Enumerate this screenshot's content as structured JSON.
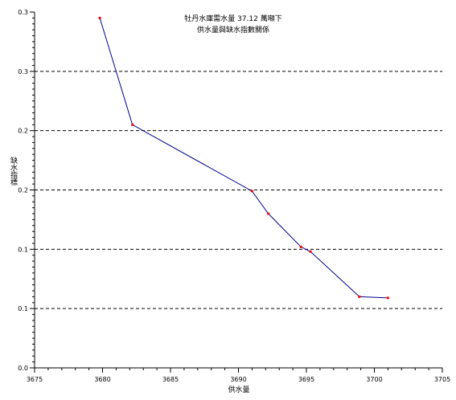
{
  "chart_data": {
    "type": "line",
    "title_line1": "牡丹水庫需水量 37.12 萬噸下",
    "title_line2": "供水量與缺水指數關係",
    "xlabel": "供水量",
    "ylabel": "缺水指標",
    "xlim": [
      3675,
      3705
    ],
    "ylim": [
      0,
      0.3
    ],
    "x_ticks": [
      {
        "value": 3675,
        "label": "3675"
      },
      {
        "value": 3680,
        "label": "3680"
      },
      {
        "value": 3685,
        "label": "3685"
      },
      {
        "value": 3690,
        "label": "3690"
      },
      {
        "value": 3695,
        "label": "3695"
      },
      {
        "value": 3700,
        "label": "3700"
      },
      {
        "value": 3705,
        "label": "3705"
      }
    ],
    "y_ticks": [
      {
        "value": 0,
        "label": "0.0"
      },
      {
        "value": 0.05,
        "label": "0.1"
      },
      {
        "value": 0.1,
        "label": "0.1"
      },
      {
        "value": 0.15,
        "label": "0.2"
      },
      {
        "value": 0.2,
        "label": "0.2"
      },
      {
        "value": 0.25,
        "label": "0.3"
      },
      {
        "value": 0.3,
        "label": "0.3"
      }
    ],
    "grid": "horizontal dashed",
    "line_color": "#00008b",
    "marker_color": "#ff0000",
    "series": [
      {
        "x": [
          3679.8,
          3682.2,
          3691.0,
          3692.2,
          3694.6,
          3695.3,
          3698.9,
          3701.0
        ],
        "y": [
          0.295,
          0.205,
          0.149,
          0.13,
          0.102,
          0.098,
          0.06,
          0.059
        ]
      }
    ]
  }
}
